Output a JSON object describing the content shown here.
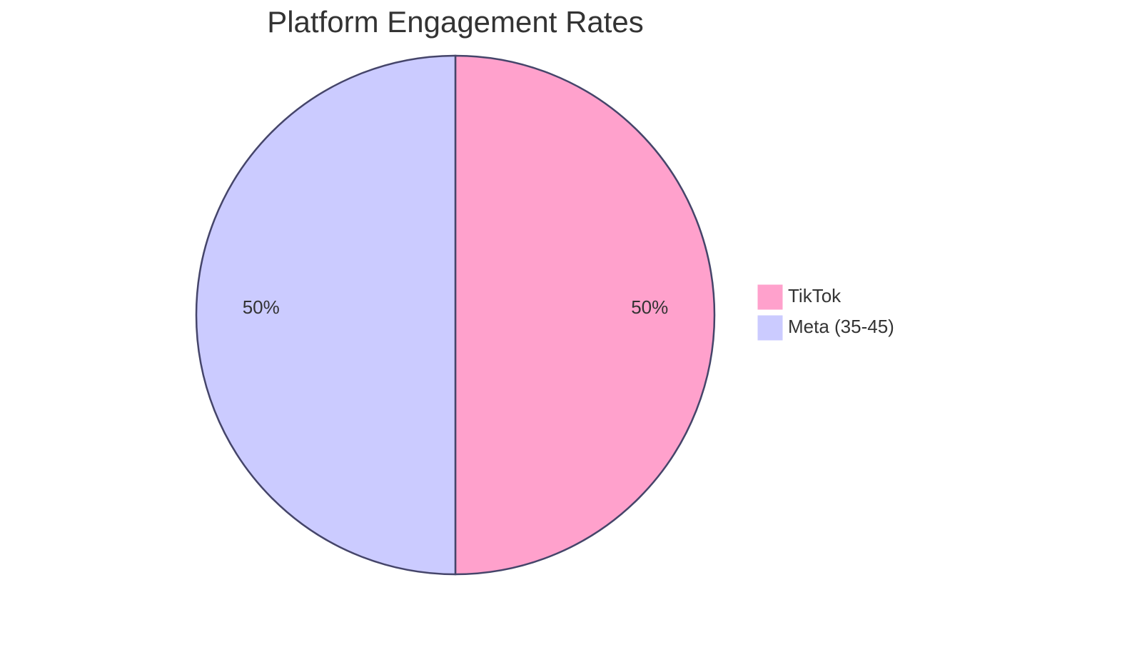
{
  "chart_data": {
    "type": "pie",
    "title": "Platform Engagement Rates",
    "categories": [
      "TikTok",
      "Meta (35-45)"
    ],
    "values": [
      50,
      50
    ],
    "value_labels": [
      "50%",
      "50%"
    ],
    "colors": [
      "#ffa1cc",
      "#cbcbff"
    ]
  }
}
